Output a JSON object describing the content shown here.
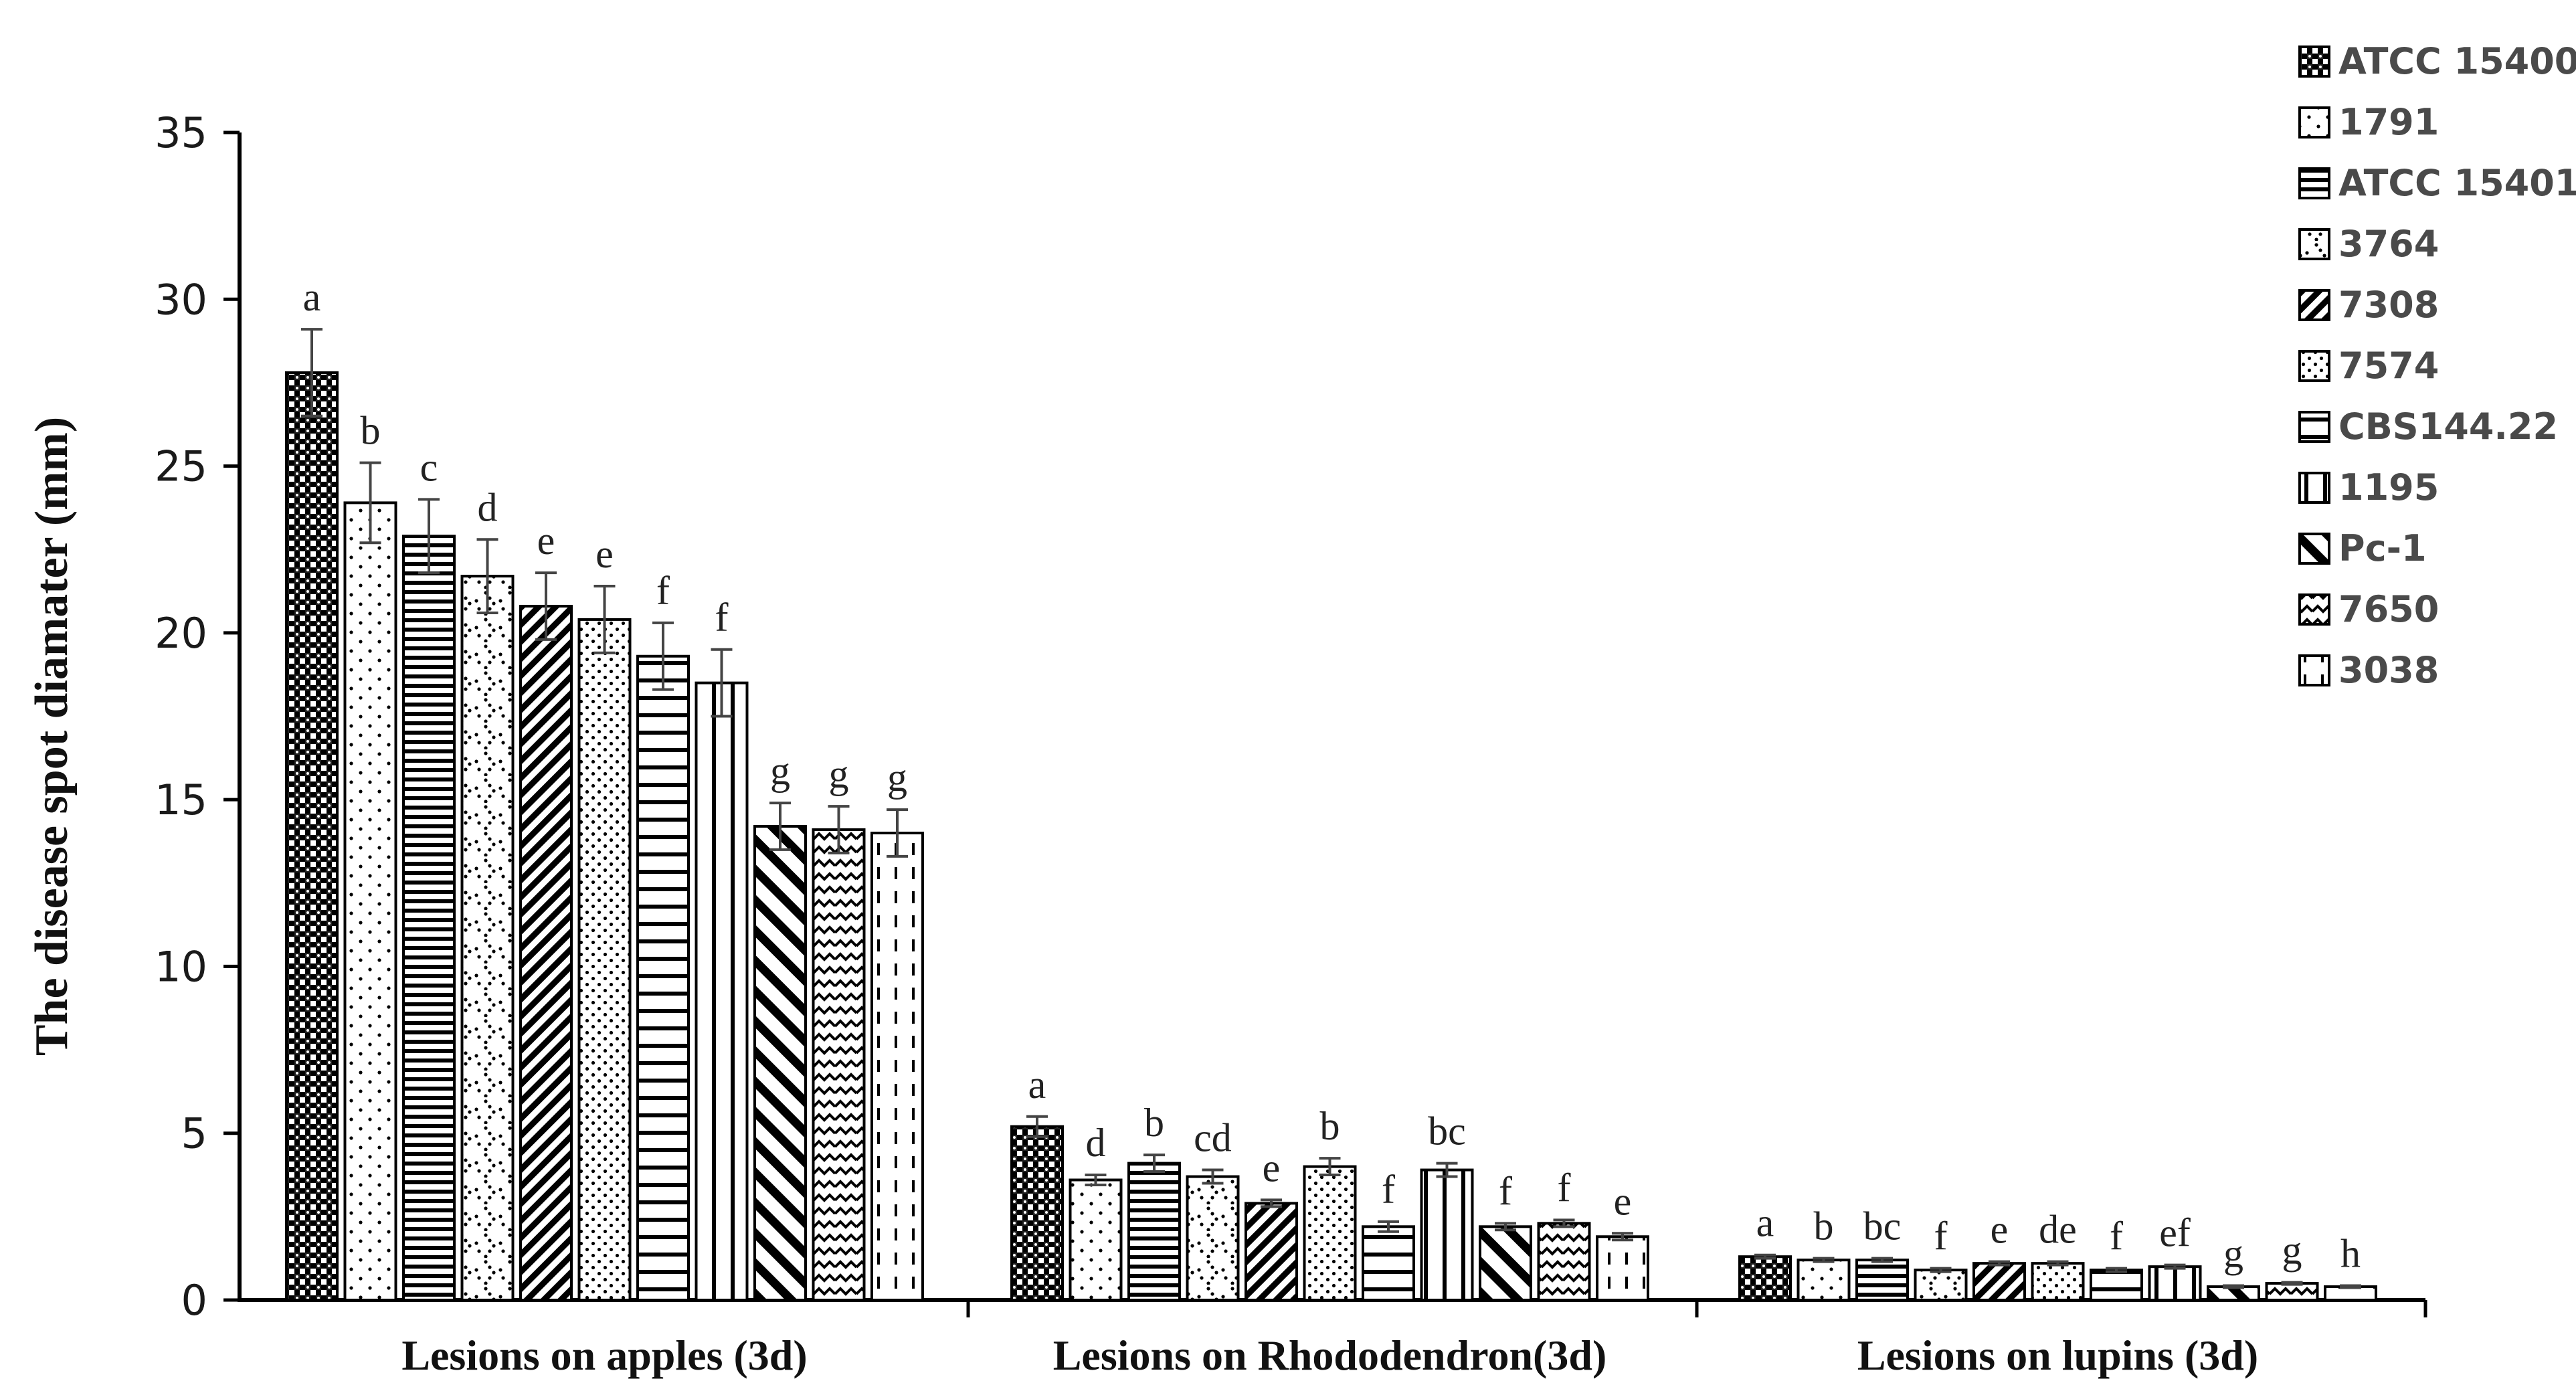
{
  "chart_data": {
    "type": "bar",
    "ylabel": "The disease spot diamater (mm)",
    "xlabel": "",
    "ylim": [
      0,
      35
    ],
    "yticks": [
      0,
      5,
      10,
      15,
      20,
      25,
      30,
      35
    ],
    "ytick_labels": [
      "0",
      "5",
      "10",
      "15",
      "20",
      "25",
      "30",
      "35"
    ],
    "grid": false,
    "legend_position": "top-right",
    "categories": [
      "Lesions on apples (3d)",
      "Lesions on Rhododendron(3d)",
      "Lesions on lupins (3d)"
    ],
    "series": [
      {
        "name": "ATCC 15400",
        "pattern": "checker",
        "values": [
          27.8,
          5.2,
          1.3
        ],
        "errors": [
          1.3,
          0.3,
          0.05
        ],
        "letters": [
          "a",
          "a",
          "a"
        ]
      },
      {
        "name": "1791",
        "pattern": "dots-sparse",
        "values": [
          23.9,
          3.6,
          1.2
        ],
        "errors": [
          1.2,
          0.15,
          0.05
        ],
        "letters": [
          "b",
          "d",
          "b"
        ]
      },
      {
        "name": "ATCC 15401",
        "pattern": "hlines-dense",
        "values": [
          22.9,
          4.1,
          1.2
        ],
        "errors": [
          1.1,
          0.25,
          0.05
        ],
        "letters": [
          "c",
          "b",
          "bc"
        ]
      },
      {
        "name": "3764",
        "pattern": "zigzag-dots",
        "values": [
          21.7,
          3.7,
          0.9
        ],
        "errors": [
          1.1,
          0.2,
          0.05
        ],
        "letters": [
          "d",
          "cd",
          "f"
        ]
      },
      {
        "name": "7308",
        "pattern": "diag-dense",
        "values": [
          20.8,
          2.9,
          1.1
        ],
        "errors": [
          1.0,
          0.1,
          0.05
        ],
        "letters": [
          "e",
          "e",
          "e"
        ]
      },
      {
        "name": "7574",
        "pattern": "dots-dense",
        "values": [
          20.4,
          4.0,
          1.1
        ],
        "errors": [
          1.0,
          0.25,
          0.05
        ],
        "letters": [
          "e",
          "b",
          "de"
        ]
      },
      {
        "name": "CBS144.22",
        "pattern": "hlines-wide",
        "values": [
          19.3,
          2.2,
          0.9
        ],
        "errors": [
          1.0,
          0.15,
          0.05
        ],
        "letters": [
          "f",
          "f",
          "f"
        ]
      },
      {
        "name": "1195",
        "pattern": "vlines",
        "values": [
          18.5,
          3.9,
          1.0
        ],
        "errors": [
          1.0,
          0.2,
          0.05
        ],
        "letters": [
          "f",
          "bc",
          "ef"
        ]
      },
      {
        "name": "Pc-1",
        "pattern": "diag-wide",
        "values": [
          14.2,
          2.2,
          0.4
        ],
        "errors": [
          0.7,
          0.1,
          0.03
        ],
        "letters": [
          "g",
          "f",
          "g"
        ]
      },
      {
        "name": "7650",
        "pattern": "zigzag",
        "values": [
          14.1,
          2.3,
          0.5
        ],
        "errors": [
          0.7,
          0.1,
          0.03
        ],
        "letters": [
          "g",
          "f",
          "g"
        ]
      },
      {
        "name": "3038",
        "pattern": "dashes-vertical",
        "values": [
          14.0,
          1.9,
          0.4
        ],
        "errors": [
          0.7,
          0.1,
          0.03
        ],
        "letters": [
          "g",
          "e",
          "h"
        ]
      }
    ]
  }
}
